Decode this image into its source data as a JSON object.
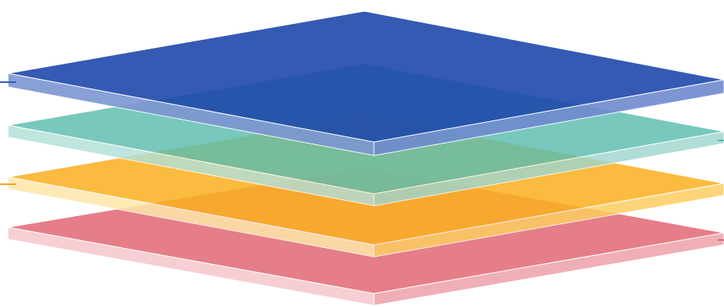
{
  "diagram": {
    "type": "stacked-layers",
    "layers": [
      {
        "id": "layer-1",
        "top_color": "#e26d78",
        "side_left_color": "#f6c8cd",
        "side_right_color": "#eea3ab",
        "opacity": 0.88,
        "connector_color": "#e26d78"
      },
      {
        "id": "layer-2",
        "top_color": "#fbb021",
        "side_left_color": "#ffe6a8",
        "side_right_color": "#fdcd62",
        "opacity": 0.86,
        "connector_color": "#f5a623"
      },
      {
        "id": "layer-3",
        "top_color": "#5bbdaf",
        "side_left_color": "#b2e0d9",
        "side_right_color": "#9fd6cd",
        "opacity": 0.82,
        "connector_color": "#5bbdaf"
      },
      {
        "id": "layer-4",
        "top_color": "#1f49ab",
        "side_left_color": "#7d96d2",
        "side_right_color": "#6f8bcf",
        "opacity": 0.9,
        "connector_color": "#2f5bbd"
      }
    ]
  }
}
